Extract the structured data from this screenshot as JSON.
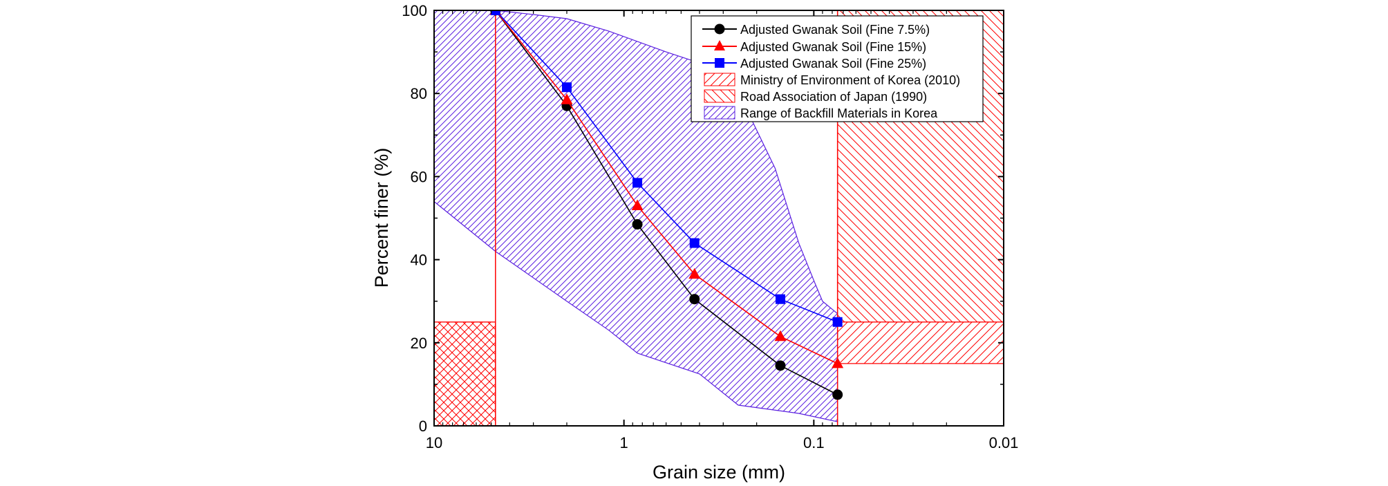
{
  "chart_data": {
    "type": "line",
    "xscale": "log",
    "xreversed": true,
    "xlabel": "Grain size (mm)",
    "ylabel": "Percent finer (%)",
    "xlim": [
      10,
      0.01
    ],
    "ylim": [
      0,
      100
    ],
    "xticks": [
      {
        "value": 10,
        "label": "10"
      },
      {
        "value": 1,
        "label": "1"
      },
      {
        "value": 0.1,
        "label": "0.1"
      },
      {
        "value": 0.01,
        "label": "0.01"
      }
    ],
    "yticks": [
      {
        "value": 0,
        "label": "0"
      },
      {
        "value": 20,
        "label": "20"
      },
      {
        "value": 40,
        "label": "40"
      },
      {
        "value": 60,
        "label": "60"
      },
      {
        "value": 80,
        "label": "80"
      },
      {
        "value": 100,
        "label": "100"
      }
    ],
    "legend_position": "top-right",
    "series": [
      {
        "name": "Adjusted Gwanak Soil (Fine 7.5%)",
        "color": "#000000",
        "marker": "circle",
        "x": [
          4.75,
          2.0,
          0.85,
          0.425,
          0.15,
          0.075
        ],
        "y": [
          100,
          77,
          48.5,
          30.5,
          14.5,
          7.5
        ]
      },
      {
        "name": "Adjusted Gwanak Soil (Fine 15%)",
        "color": "#ff0000",
        "marker": "triangle",
        "x": [
          4.75,
          2.0,
          0.85,
          0.425,
          0.15,
          0.075
        ],
        "y": [
          100,
          78.5,
          53,
          36.5,
          21.5,
          15
        ]
      },
      {
        "name": "Adjusted Gwanak Soil (Fine 25%)",
        "color": "#0000ff",
        "marker": "square",
        "x": [
          4.75,
          2.0,
          0.85,
          0.425,
          0.15,
          0.075
        ],
        "y": [
          100,
          81.5,
          58.5,
          44,
          30.5,
          25
        ]
      }
    ],
    "regions": [
      {
        "name": "Ministry of Environment of Korea (2010)",
        "color": "#ff0000",
        "hatch": "forward-diagonal",
        "areas": [
          [
            [
              10,
              0
            ],
            [
              4.75,
              0
            ],
            [
              4.75,
              25
            ],
            [
              10,
              25
            ]
          ],
          [
            [
              0.075,
              15
            ],
            [
              0.01,
              15
            ],
            [
              0.01,
              25
            ],
            [
              0.075,
              25
            ]
          ]
        ]
      },
      {
        "name": "Road Association of Japan (1990)",
        "color": "#ff0000",
        "hatch": "backward-diagonal",
        "areas": [
          [
            [
              10,
              0
            ],
            [
              4.75,
              0
            ],
            [
              4.75,
              25
            ],
            [
              10,
              25
            ]
          ],
          [
            [
              0.075,
              25
            ],
            [
              0.01,
              25
            ],
            [
              0.01,
              100
            ],
            [
              0.075,
              100
            ]
          ]
        ]
      },
      {
        "name": "Range of Backfill Materials in Korea",
        "color": "#5a1fe0",
        "hatch": "forward-diagonal",
        "areas": [
          [
            [
              10,
              100
            ],
            [
              4.75,
              100
            ],
            [
              3.0,
              99
            ],
            [
              2.0,
              98
            ],
            [
              1.2,
              95
            ],
            [
              0.6,
              90
            ],
            [
              0.28,
              85
            ],
            [
              0.16,
              62
            ],
            [
              0.12,
              44
            ],
            [
              0.1,
              35
            ],
            [
              0.09,
              30
            ],
            [
              0.075,
              27
            ],
            [
              0.075,
              1
            ],
            [
              0.12,
              3
            ],
            [
              0.25,
              5
            ],
            [
              0.4,
              12.5
            ],
            [
              0.85,
              17.5
            ],
            [
              1.2,
              23
            ],
            [
              2.0,
              30
            ],
            [
              4.75,
              42
            ],
            [
              10,
              54
            ]
          ]
        ]
      }
    ],
    "vertical_lines": [
      {
        "x": 4.75,
        "color": "#ff0000",
        "from": 0,
        "to": 100
      },
      {
        "x": 0.075,
        "color": "#ff0000",
        "from": 0,
        "to": 100
      }
    ]
  }
}
